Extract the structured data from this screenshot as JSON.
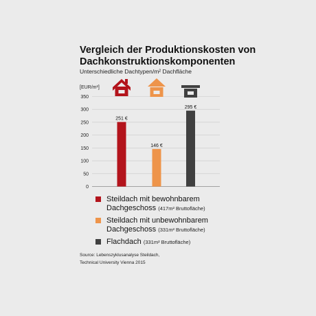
{
  "chart_data": {
    "type": "bar",
    "title": "Vergleich der Produktionskosten von Dachkonstruktionskomponenten",
    "subtitle": "Unterschiedliche Dachtypen/m² Dachfläche",
    "ylabel": "[EUR/m²]",
    "ylim": [
      0,
      350
    ],
    "yticks": [
      0,
      50,
      100,
      150,
      200,
      250,
      300,
      350
    ],
    "grid": true,
    "categories": [
      "Steildach mit bewohnbarem Dachgeschoss",
      "Steildach mit unbewohnbarem Dachgeschoss",
      "Flachdach"
    ],
    "values": [
      251,
      146,
      295
    ],
    "value_labels": [
      "251 €",
      "146 €",
      "295 €"
    ],
    "colors": [
      "#b3141c",
      "#ee944a",
      "#404040"
    ],
    "icons": [
      "pitched-roof-house-dormer-icon",
      "pitched-roof-house-icon",
      "flat-roof-house-icon"
    ]
  },
  "legend": [
    {
      "name_lines": [
        "Steildach mit bewohnbarem",
        "Dachgeschoss"
      ],
      "note": "(417m² Bruttofläche)",
      "color": "#b3141c"
    },
    {
      "name_lines": [
        "Steildach mit unbewohnbarem",
        "Dachgeschoss"
      ],
      "note": "(331m² Bruttofläche)",
      "color": "#ee944a"
    },
    {
      "name_lines": [
        "Flachdach"
      ],
      "note": "(331m² Bruttofläche)",
      "color": "#404040"
    }
  ],
  "source": {
    "line1": "Source: Lebenszyklusanalyse Steildach,",
    "line2": "Technical University Vienna 2015"
  }
}
